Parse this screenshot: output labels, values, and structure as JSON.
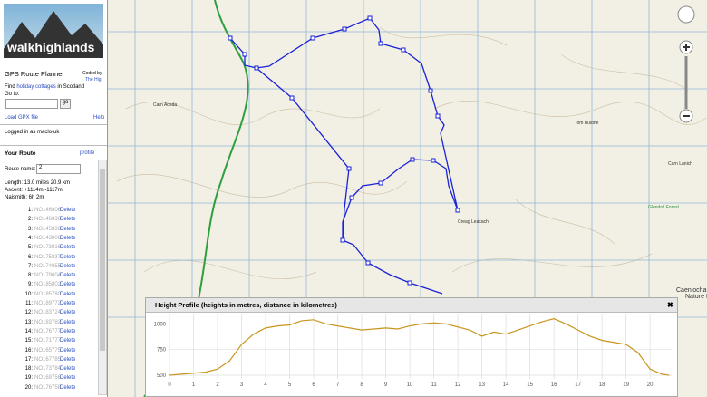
{
  "sidebar": {
    "logo": "walkhighlands",
    "app_title": "GPS Route Planner",
    "coded_by": "Coded by",
    "coder": "The Hig",
    "find_prefix": "Find",
    "find_link": "holiday cottages",
    "find_suffix": "in Scotland",
    "goto_label": "Go to:",
    "go_button": "go",
    "load_gpx": "Load GPX file",
    "help": "Help",
    "logged_in": "Logged in as maclo-uk"
  },
  "route": {
    "heading": "Your Route",
    "profile_link": "profile",
    "name_label": "Route name:",
    "name_value": "2",
    "length": "Length: 13.0 miles  20.9 km",
    "ascent": "Ascent: +1114m -1117m",
    "naismith": "Naismith: 6h 2m",
    "points": [
      {
        "index": "1:",
        "ref": "NO146806",
        "action": "Delete"
      },
      {
        "index": "2:",
        "ref": "NO146830",
        "action": "Delete"
      },
      {
        "index": "3:",
        "ref": "NO145830",
        "action": "Delete"
      },
      {
        "index": "4:",
        "ref": "NO143806",
        "action": "Delete"
      },
      {
        "index": "5:",
        "ref": "NO173816",
        "action": "Delete"
      },
      {
        "index": "6:",
        "ref": "NO175837",
        "action": "Delete"
      },
      {
        "index": "7:",
        "ref": "NO174855",
        "action": "Delete"
      },
      {
        "index": "8:",
        "ref": "NO179604",
        "action": "Delete"
      },
      {
        "index": "9:",
        "ref": "NO185802",
        "action": "Delete"
      },
      {
        "index": "10:",
        "ref": "NO185780",
        "action": "Delete"
      },
      {
        "index": "11:",
        "ref": "NO189772",
        "action": "Delete"
      },
      {
        "index": "12:",
        "ref": "NO183724",
        "action": "Delete"
      },
      {
        "index": "13:",
        "ref": "NO183782",
        "action": "Delete"
      },
      {
        "index": "14:",
        "ref": "NO176777",
        "action": "Delete"
      },
      {
        "index": "15:",
        "ref": "NO171777",
        "action": "Delete"
      },
      {
        "index": "16:",
        "ref": "NO165775",
        "action": "Delete"
      },
      {
        "index": "17:",
        "ref": "NO167785",
        "action": "Delete"
      },
      {
        "index": "18:",
        "ref": "NO173784",
        "action": "Delete"
      },
      {
        "index": "19:",
        "ref": "NO169756",
        "action": "Delete"
      },
      {
        "index": "20:",
        "ref": "NO176758",
        "action": "Delete"
      }
    ]
  },
  "map_labels": [
    "Carn Aosda",
    "Tom Buidhe",
    "Carn Lanich",
    "Glendoll Forest",
    "Creag Leacach",
    "Caenlochan",
    "Nature Re"
  ],
  "profile_close": "✖",
  "chart_data": {
    "type": "line",
    "title": "Height Profile (heights in metres, distance in kilometres)",
    "x": [
      0,
      0.5,
      1,
      1.5,
      2,
      2.5,
      3,
      3.5,
      4,
      4.5,
      5,
      5.5,
      6,
      6.5,
      7,
      7.5,
      8,
      8.5,
      9,
      9.5,
      10,
      10.5,
      11,
      11.5,
      12,
      12.5,
      13,
      13.5,
      14,
      14.5,
      15,
      15.5,
      16,
      16.5,
      17,
      17.5,
      18,
      18.5,
      19,
      19.5,
      20,
      20.5,
      20.8
    ],
    "values": [
      500,
      510,
      520,
      530,
      560,
      640,
      800,
      900,
      960,
      980,
      990,
      1030,
      1040,
      1000,
      980,
      960,
      940,
      950,
      960,
      950,
      980,
      1000,
      1010,
      1000,
      970,
      940,
      880,
      920,
      900,
      940,
      980,
      1020,
      1050,
      1000,
      940,
      880,
      840,
      820,
      800,
      720,
      560,
      510,
      500
    ],
    "color": "#c8961e",
    "xlim": [
      0,
      20.9
    ],
    "xticks": [
      0,
      1,
      2,
      3,
      4,
      5,
      6,
      7,
      8,
      9,
      10,
      11,
      12,
      13,
      14,
      15,
      16,
      17,
      18,
      19,
      20
    ],
    "ylim": [
      465,
      1100
    ],
    "yticks": [
      500,
      750,
      1000
    ],
    "grid": true
  }
}
